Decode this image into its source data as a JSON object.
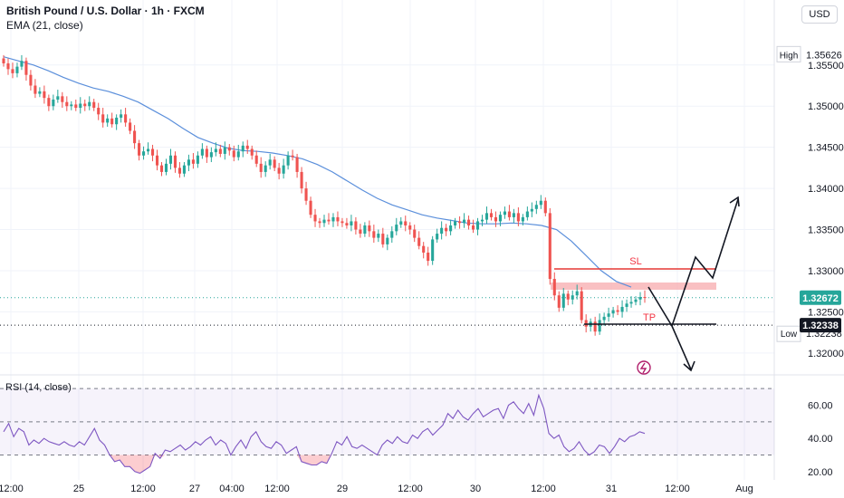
{
  "header": {
    "title": "British Pound / U.S. Dollar · 1h · FXCM",
    "indicator": "EMA (21, close)",
    "currency": "USD"
  },
  "chart_data": [
    {
      "type": "candlestick",
      "title": "British Pound / U.S. Dollar · 1h · FXCM",
      "ylim": [
        1.318,
        1.3585
      ],
      "price_ticks": [
        "1.35500",
        "1.35000",
        "1.34500",
        "1.34000",
        "1.33500",
        "1.33000",
        "1.32500",
        "1.32000"
      ],
      "x_ticks": [
        "12:00",
        "25",
        "12:00",
        "27",
        "04:00",
        "12:00",
        "29",
        "12:00",
        "30",
        "12:00",
        "31",
        "12:00",
        "Aug"
      ],
      "high": {
        "label": "High",
        "value": "1.35626"
      },
      "low": {
        "label": "Low",
        "value": "1.32238"
      },
      "last_price": {
        "value": "1.32672",
        "color": "#26a69a"
      },
      "marked_level": {
        "value": "1.32338",
        "color": "#131722"
      },
      "close_series": [
        1.3552,
        1.3545,
        1.354,
        1.3548,
        1.3555,
        1.3538,
        1.3525,
        1.3515,
        1.3518,
        1.351,
        1.35,
        1.3508,
        1.3512,
        1.3505,
        1.35,
        1.3502,
        1.3498,
        1.3503,
        1.35,
        1.3505,
        1.3498,
        1.349,
        1.348,
        1.3485,
        1.3478,
        1.3486,
        1.349,
        1.348,
        1.347,
        1.3455,
        1.344,
        1.3445,
        1.3448,
        1.344,
        1.3428,
        1.342,
        1.343,
        1.344,
        1.3425,
        1.3418,
        1.3428,
        1.3435,
        1.343,
        1.344,
        1.3448,
        1.3438,
        1.3444,
        1.3448,
        1.3442,
        1.345,
        1.3446,
        1.3438,
        1.3445,
        1.3452,
        1.3448,
        1.344,
        1.343,
        1.342,
        1.3428,
        1.3435,
        1.3425,
        1.3418,
        1.3428,
        1.344,
        1.3438,
        1.342,
        1.34,
        1.3385,
        1.3368,
        1.336,
        1.3358,
        1.3362,
        1.336,
        1.3365,
        1.336,
        1.3358,
        1.3355,
        1.336,
        1.335,
        1.3345,
        1.3355,
        1.3348,
        1.334,
        1.3345,
        1.3332,
        1.334,
        1.3348,
        1.3356,
        1.336,
        1.3355,
        1.335,
        1.334,
        1.333,
        1.3322,
        1.3312,
        1.3338,
        1.3345,
        1.3352,
        1.3348,
        1.3355,
        1.336,
        1.3358,
        1.3362,
        1.3355,
        1.335,
        1.336,
        1.3362,
        1.337,
        1.3365,
        1.336,
        1.3368,
        1.3372,
        1.3365,
        1.337,
        1.336,
        1.3365,
        1.3372,
        1.3375,
        1.338,
        1.3385,
        1.337,
        1.329,
        1.327,
        1.3255,
        1.3272,
        1.3265,
        1.327,
        1.3275,
        1.324,
        1.3232,
        1.3238,
        1.3226,
        1.324,
        1.3244,
        1.3248,
        1.3252,
        1.325,
        1.3256,
        1.326,
        1.3262,
        1.3265,
        1.3268,
        1.3267
      ],
      "ema_series": [
        1.356,
        1.3555,
        1.355,
        1.3543,
        1.3535,
        1.3528,
        1.3522,
        1.3518,
        1.3512,
        1.3505,
        1.3495,
        1.3485,
        1.3473,
        1.3462,
        1.3455,
        1.3449,
        1.3446,
        1.3445,
        1.3443,
        1.344,
        1.3436,
        1.3429,
        1.342,
        1.3409,
        1.3398,
        1.3388,
        1.338,
        1.3374,
        1.3368,
        1.3364,
        1.3361,
        1.3358,
        1.3357,
        1.3357,
        1.3358,
        1.3357,
        1.3355,
        1.335,
        1.3336,
        1.3318,
        1.33,
        1.3287,
        1.328
      ],
      "rsi": {
        "label": "RSI (14, close)",
        "ylim": [
          15,
          75
        ],
        "ticks": [
          "60.00",
          "40.00",
          "20.00"
        ],
        "bands": [
          70,
          50,
          30
        ],
        "values": [
          44,
          49,
          41,
          46,
          44,
          36,
          39,
          37,
          40,
          38,
          37,
          36,
          38,
          36,
          35,
          38,
          36,
          41,
          46,
          39,
          36,
          30,
          26,
          27,
          23,
          23,
          20,
          19,
          21,
          23,
          31,
          28,
          33,
          32,
          34,
          36,
          33,
          35,
          38,
          36,
          39,
          41,
          36,
          39,
          37,
          30,
          35,
          39,
          34,
          41,
          44,
          38,
          35,
          34,
          38,
          36,
          31,
          33,
          35,
          26,
          25,
          24,
          24,
          26,
          25,
          31,
          38,
          36,
          41,
          35,
          34,
          36,
          34,
          32,
          30,
          36,
          39,
          37,
          41,
          38,
          37,
          42,
          40,
          44,
          46,
          42,
          45,
          48,
          55,
          52,
          57,
          53,
          51,
          55,
          58,
          53,
          55,
          57,
          58,
          52,
          60,
          62,
          58,
          55,
          61,
          54,
          66,
          58,
          43,
          40,
          42,
          35,
          32,
          34,
          38,
          33,
          30,
          32,
          36,
          35,
          31,
          35,
          40,
          38,
          41,
          42,
          44,
          43
        ],
        "line_color": "#7e57c2"
      },
      "annotations": [
        {
          "label": "SL",
          "color": "#f23645"
        },
        {
          "label": "TP",
          "color": "#f23645"
        }
      ],
      "colors": {
        "up": "#26a69a",
        "down": "#ef5350",
        "ema": "#5b8fdb",
        "zone": "#f7a5a8"
      }
    }
  ]
}
